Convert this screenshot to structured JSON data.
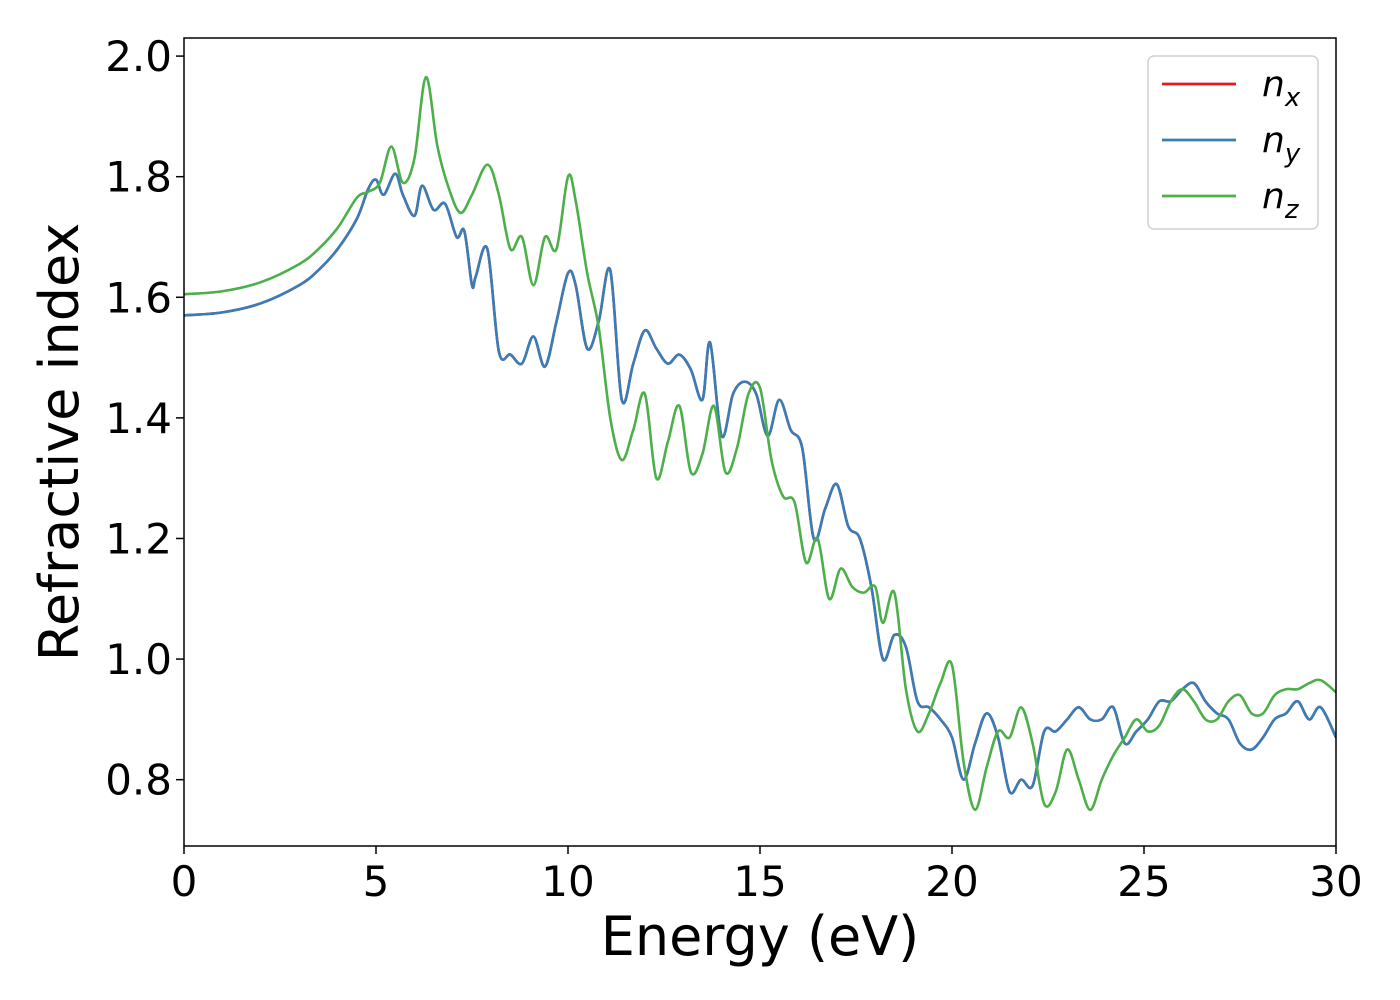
{
  "chart_data": {
    "type": "line",
    "title": "",
    "xlabel": "Energy (eV)",
    "ylabel": "Refractive index",
    "xlim": [
      0,
      30
    ],
    "ylim": [
      0.69,
      2.03
    ],
    "xticks": [
      0,
      5,
      10,
      15,
      20,
      25,
      30
    ],
    "xtick_labels": [
      "0",
      "5",
      "10",
      "15",
      "20",
      "25",
      "30"
    ],
    "yticks": [
      0.8,
      1.0,
      1.2,
      1.4,
      1.6,
      1.8,
      2.0
    ],
    "ytick_labels": [
      "0.8",
      "1.0",
      "1.2",
      "1.4",
      "1.6",
      "1.8",
      "2.0"
    ],
    "grid": false,
    "legend_position": "top-right",
    "series": [
      {
        "name": "n_x",
        "label_base": "n",
        "label_sub": "x",
        "color": "#e41a1c",
        "x": [
          0,
          1,
          2,
          3,
          3.5,
          4,
          4.5,
          4.8,
          5.0,
          5.2,
          5.5,
          5.7,
          6.0,
          6.2,
          6.5,
          6.8,
          7.1,
          7.3,
          7.5,
          7.6,
          7.9,
          8.2,
          8.5,
          8.8,
          9.1,
          9.4,
          9.7,
          10.0,
          10.2,
          10.5,
          10.8,
          11.1,
          11.4,
          11.7,
          12.0,
          12.3,
          12.6,
          12.9,
          13.2,
          13.5,
          13.7,
          14.0,
          14.3,
          14.6,
          14.9,
          15.2,
          15.5,
          15.8,
          16.1,
          16.4,
          16.7,
          17.0,
          17.3,
          17.6,
          17.9,
          18.2,
          18.5,
          18.8,
          19.1,
          19.4,
          19.7,
          20.0,
          20.3,
          20.6,
          20.9,
          21.2,
          21.5,
          21.8,
          22.1,
          22.4,
          22.7,
          23.0,
          23.3,
          23.6,
          23.9,
          24.2,
          24.5,
          24.8,
          25.1,
          25.4,
          25.7,
          26.0,
          26.3,
          26.6,
          26.9,
          27.2,
          27.5,
          27.8,
          28.1,
          28.4,
          28.7,
          29.0,
          29.3,
          29.6,
          30.0
        ],
        "y": [
          1.57,
          1.575,
          1.59,
          1.62,
          1.645,
          1.68,
          1.73,
          1.78,
          1.795,
          1.77,
          1.805,
          1.77,
          1.735,
          1.785,
          1.745,
          1.755,
          1.7,
          1.71,
          1.62,
          1.635,
          1.68,
          1.51,
          1.505,
          1.49,
          1.535,
          1.485,
          1.56,
          1.64,
          1.62,
          1.515,
          1.56,
          1.645,
          1.43,
          1.49,
          1.545,
          1.515,
          1.49,
          1.505,
          1.48,
          1.43,
          1.525,
          1.37,
          1.44,
          1.46,
          1.44,
          1.37,
          1.43,
          1.38,
          1.35,
          1.2,
          1.25,
          1.29,
          1.22,
          1.2,
          1.12,
          1.0,
          1.04,
          1.02,
          0.93,
          0.92,
          0.9,
          0.87,
          0.8,
          0.86,
          0.91,
          0.87,
          0.78,
          0.8,
          0.79,
          0.88,
          0.88,
          0.9,
          0.92,
          0.9,
          0.9,
          0.92,
          0.86,
          0.88,
          0.9,
          0.93,
          0.93,
          0.95,
          0.96,
          0.93,
          0.91,
          0.9,
          0.86,
          0.85,
          0.87,
          0.9,
          0.91,
          0.93,
          0.9,
          0.92,
          0.87
        ]
      },
      {
        "name": "n_y",
        "label_base": "n",
        "label_sub": "y",
        "color": "#377eb8",
        "x": [
          0,
          1,
          2,
          3,
          3.5,
          4,
          4.5,
          4.8,
          5.0,
          5.2,
          5.5,
          5.7,
          6.0,
          6.2,
          6.5,
          6.8,
          7.1,
          7.3,
          7.5,
          7.6,
          7.9,
          8.2,
          8.5,
          8.8,
          9.1,
          9.4,
          9.7,
          10.0,
          10.2,
          10.5,
          10.8,
          11.1,
          11.4,
          11.7,
          12.0,
          12.3,
          12.6,
          12.9,
          13.2,
          13.5,
          13.7,
          14.0,
          14.3,
          14.6,
          14.9,
          15.2,
          15.5,
          15.8,
          16.1,
          16.4,
          16.7,
          17.0,
          17.3,
          17.6,
          17.9,
          18.2,
          18.5,
          18.8,
          19.1,
          19.4,
          19.7,
          20.0,
          20.3,
          20.6,
          20.9,
          21.2,
          21.5,
          21.8,
          22.1,
          22.4,
          22.7,
          23.0,
          23.3,
          23.6,
          23.9,
          24.2,
          24.5,
          24.8,
          25.1,
          25.4,
          25.7,
          26.0,
          26.3,
          26.6,
          26.9,
          27.2,
          27.5,
          27.8,
          28.1,
          28.4,
          28.7,
          29.0,
          29.3,
          29.6,
          30.0
        ],
        "y": [
          1.57,
          1.575,
          1.59,
          1.62,
          1.645,
          1.68,
          1.73,
          1.78,
          1.795,
          1.77,
          1.805,
          1.77,
          1.735,
          1.785,
          1.745,
          1.755,
          1.7,
          1.71,
          1.62,
          1.635,
          1.68,
          1.51,
          1.505,
          1.49,
          1.535,
          1.485,
          1.56,
          1.64,
          1.62,
          1.515,
          1.56,
          1.645,
          1.43,
          1.49,
          1.545,
          1.515,
          1.49,
          1.505,
          1.48,
          1.43,
          1.525,
          1.37,
          1.44,
          1.46,
          1.44,
          1.37,
          1.43,
          1.38,
          1.35,
          1.2,
          1.25,
          1.29,
          1.22,
          1.2,
          1.12,
          1.0,
          1.04,
          1.02,
          0.93,
          0.92,
          0.9,
          0.87,
          0.8,
          0.86,
          0.91,
          0.87,
          0.78,
          0.8,
          0.79,
          0.88,
          0.88,
          0.9,
          0.92,
          0.9,
          0.9,
          0.92,
          0.86,
          0.88,
          0.9,
          0.93,
          0.93,
          0.95,
          0.96,
          0.93,
          0.91,
          0.9,
          0.86,
          0.85,
          0.87,
          0.9,
          0.91,
          0.93,
          0.9,
          0.92,
          0.87
        ]
      },
      {
        "name": "n_z",
        "label_base": "n",
        "label_sub": "z",
        "color": "#4daf4a",
        "x": [
          0,
          1,
          2,
          3,
          3.5,
          4,
          4.5,
          4.8,
          5.1,
          5.4,
          5.7,
          6.0,
          6.3,
          6.6,
          6.9,
          7.2,
          7.5,
          7.9,
          8.2,
          8.5,
          8.8,
          9.1,
          9.4,
          9.7,
          10.0,
          10.2,
          10.5,
          10.8,
          11.1,
          11.4,
          11.7,
          12.0,
          12.3,
          12.6,
          12.9,
          13.2,
          13.5,
          13.8,
          14.1,
          14.4,
          14.7,
          15.0,
          15.3,
          15.6,
          15.9,
          16.2,
          16.5,
          16.8,
          17.1,
          17.4,
          17.7,
          18.0,
          18.2,
          18.5,
          18.8,
          19.1,
          19.4,
          19.7,
          20.0,
          20.3,
          20.6,
          20.9,
          21.2,
          21.5,
          21.8,
          22.1,
          22.4,
          22.7,
          23.0,
          23.3,
          23.6,
          23.9,
          24.2,
          24.5,
          24.8,
          25.1,
          25.4,
          25.7,
          26.0,
          26.3,
          26.6,
          26.9,
          27.2,
          27.5,
          27.8,
          28.1,
          28.4,
          28.7,
          29.0,
          29.3,
          29.6,
          30.0
        ],
        "y": [
          1.605,
          1.61,
          1.625,
          1.655,
          1.68,
          1.715,
          1.765,
          1.775,
          1.79,
          1.85,
          1.79,
          1.83,
          1.965,
          1.85,
          1.78,
          1.74,
          1.77,
          1.82,
          1.77,
          1.68,
          1.7,
          1.62,
          1.7,
          1.68,
          1.8,
          1.76,
          1.64,
          1.55,
          1.4,
          1.33,
          1.38,
          1.44,
          1.3,
          1.36,
          1.42,
          1.31,
          1.34,
          1.42,
          1.31,
          1.35,
          1.44,
          1.45,
          1.33,
          1.27,
          1.26,
          1.16,
          1.2,
          1.1,
          1.15,
          1.12,
          1.11,
          1.12,
          1.06,
          1.11,
          0.95,
          0.88,
          0.91,
          0.96,
          0.99,
          0.83,
          0.75,
          0.82,
          0.88,
          0.87,
          0.92,
          0.86,
          0.76,
          0.78,
          0.85,
          0.8,
          0.75,
          0.8,
          0.84,
          0.87,
          0.9,
          0.88,
          0.89,
          0.93,
          0.95,
          0.93,
          0.9,
          0.9,
          0.93,
          0.94,
          0.91,
          0.91,
          0.94,
          0.95,
          0.95,
          0.96,
          0.965,
          0.945
        ]
      }
    ]
  }
}
